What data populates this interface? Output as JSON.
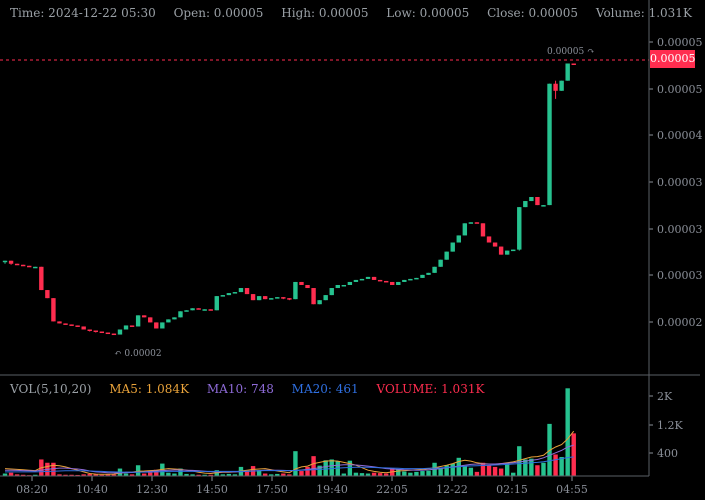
{
  "legend": {
    "time_label": "Time: 2024-12-22 05:30",
    "open_label": "Open: 0.00005",
    "high_label": "High: 0.00005",
    "low_label": "Low: 0.00005",
    "close_label": "Close: 0.00005",
    "volume_label": "Volume: 1.031K"
  },
  "volume_legend": {
    "title": "VOL(5,10,20)",
    "ma5": "MA5: 1.084K",
    "ma10": "MA10: 748",
    "ma20": "MA20: 461",
    "volume": "VOLUME: 1.031K"
  },
  "current_price": "0.00005",
  "max_marker": "0.00005",
  "min_marker": "0.00002",
  "colors": {
    "up": "#26c28f",
    "down": "#ff2d4f",
    "ma5": "#e8a23a",
    "ma10": "#8e6bd8",
    "ma20": "#2f6fe0",
    "axis": "#8a8f98"
  },
  "chart_data": {
    "type": "candlestick",
    "x_ticks": [
      "08:20",
      "10:40",
      "12:30",
      "14:50",
      "17:50",
      "19:40",
      "22:05",
      "12-22",
      "02:15",
      "04:55"
    ],
    "price_ticks": [
      "0.00005",
      "0.00005",
      "0.00004",
      "0.00003",
      "0.00003",
      "0.00003",
      "0.00002"
    ],
    "volume_ticks": [
      "2K",
      "1.2K",
      "400"
    ],
    "price_range": [
      1.68e-05,
      5.18e-05
    ],
    "volume_range": [
      0,
      2200
    ],
    "candles": [
      [
        2.8e-05,
        2.8e-05,
        2.77e-05,
        2.8e-05,
        60
      ],
      [
        2.8e-05,
        2.8e-05,
        2.76e-05,
        2.77e-05,
        80
      ],
      [
        2.77e-05,
        2.77e-05,
        2.76e-05,
        2.76e-05,
        40
      ],
      [
        2.76e-05,
        2.76e-05,
        2.75e-05,
        2.75e-05,
        30
      ],
      [
        2.75e-05,
        2.75e-05,
        2.74e-05,
        2.74e-05,
        20
      ],
      [
        2.74e-05,
        2.74e-05,
        2.73e-05,
        2.74e-05,
        30
      ],
      [
        2.74e-05,
        2.74e-05,
        2.51e-05,
        2.51e-05,
        400
      ],
      [
        2.51e-05,
        2.51e-05,
        2.43e-05,
        2.43e-05,
        320
      ],
      [
        2.43e-05,
        2.43e-05,
        2.2e-05,
        2.2e-05,
        320
      ],
      [
        2.2e-05,
        2.2e-05,
        2.18e-05,
        2.18e-05,
        40
      ],
      [
        2.18e-05,
        2.18e-05,
        2.17e-05,
        2.17e-05,
        30
      ],
      [
        2.17e-05,
        2.17e-05,
        2.16e-05,
        2.16e-05,
        30
      ],
      [
        2.16e-05,
        2.16e-05,
        2.15e-05,
        2.15e-05,
        25
      ],
      [
        2.15e-05,
        2.15e-05,
        2.12e-05,
        2.12e-05,
        40
      ],
      [
        2.12e-05,
        2.12e-05,
        2.1e-05,
        2.11e-05,
        50
      ],
      [
        2.11e-05,
        2.11e-05,
        2.09e-05,
        2.1e-05,
        40
      ],
      [
        2.1e-05,
        2.1e-05,
        2.09e-05,
        2.09e-05,
        30
      ],
      [
        2.09e-05,
        2.09e-05,
        2.08e-05,
        2.08e-05,
        35
      ],
      [
        2.08e-05,
        2.08e-05,
        2.07e-05,
        2.07e-05,
        35
      ],
      [
        2.07e-05,
        2.12e-05,
        2.07e-05,
        2.12e-05,
        180
      ],
      [
        2.12e-05,
        2.16e-05,
        2.12e-05,
        2.16e-05,
        60
      ],
      [
        2.16e-05,
        2.16e-05,
        2.15e-05,
        2.15e-05,
        40
      ],
      [
        2.15e-05,
        2.26e-05,
        2.15e-05,
        2.26e-05,
        260
      ],
      [
        2.26e-05,
        2.26e-05,
        2.24e-05,
        2.24e-05,
        60
      ],
      [
        2.24e-05,
        2.24e-05,
        2.19e-05,
        2.19e-05,
        120
      ],
      [
        2.19e-05,
        2.19e-05,
        2.13e-05,
        2.13e-05,
        150
      ],
      [
        2.13e-05,
        2.19e-05,
        2.13e-05,
        2.19e-05,
        300
      ],
      [
        2.19e-05,
        2.22e-05,
        2.19e-05,
        2.22e-05,
        80
      ],
      [
        2.22e-05,
        2.24e-05,
        2.22e-05,
        2.24e-05,
        60
      ],
      [
        2.24e-05,
        2.3e-05,
        2.24e-05,
        2.3e-05,
        180
      ],
      [
        2.3e-05,
        2.31e-05,
        2.3e-05,
        2.31e-05,
        50
      ],
      [
        2.31e-05,
        2.33e-05,
        2.31e-05,
        2.33e-05,
        40
      ],
      [
        2.33e-05,
        2.33e-05,
        2.32e-05,
        2.32e-05,
        30
      ],
      [
        2.32e-05,
        2.32e-05,
        2.31e-05,
        2.32e-05,
        30
      ],
      [
        2.32e-05,
        2.32e-05,
        2.31e-05,
        2.31e-05,
        30
      ],
      [
        2.31e-05,
        2.45e-05,
        2.31e-05,
        2.45e-05,
        140
      ],
      [
        2.45e-05,
        2.46e-05,
        2.45e-05,
        2.46e-05,
        40
      ],
      [
        2.46e-05,
        2.48e-05,
        2.46e-05,
        2.48e-05,
        50
      ],
      [
        2.48e-05,
        2.49e-05,
        2.48e-05,
        2.49e-05,
        40
      ],
      [
        2.49e-05,
        2.53e-05,
        2.49e-05,
        2.53e-05,
        220
      ],
      [
        2.53e-05,
        2.53e-05,
        2.47e-05,
        2.47e-05,
        120
      ],
      [
        2.47e-05,
        2.47e-05,
        2.41e-05,
        2.41e-05,
        240
      ],
      [
        2.41e-05,
        2.45e-05,
        2.41e-05,
        2.45e-05,
        140
      ],
      [
        2.45e-05,
        2.45e-05,
        2.42e-05,
        2.42e-05,
        60
      ],
      [
        2.42e-05,
        2.43e-05,
        2.42e-05,
        2.43e-05,
        40
      ],
      [
        2.43e-05,
        2.44e-05,
        2.43e-05,
        2.44e-05,
        50
      ],
      [
        2.44e-05,
        2.44e-05,
        2.42e-05,
        2.43e-05,
        60
      ],
      [
        2.43e-05,
        2.43e-05,
        2.41e-05,
        2.42e-05,
        40
      ],
      [
        2.42e-05,
        2.59e-05,
        2.42e-05,
        2.59e-05,
        600
      ],
      [
        2.59e-05,
        2.59e-05,
        2.56e-05,
        2.56e-05,
        120
      ],
      [
        2.56e-05,
        2.56e-05,
        2.53e-05,
        2.53e-05,
        220
      ],
      [
        2.53e-05,
        2.53e-05,
        2.37e-05,
        2.37e-05,
        480
      ],
      [
        2.37e-05,
        2.41e-05,
        2.37e-05,
        2.41e-05,
        250
      ],
      [
        2.41e-05,
        2.46e-05,
        2.41e-05,
        2.46e-05,
        380
      ],
      [
        2.46e-05,
        2.53e-05,
        2.46e-05,
        2.53e-05,
        400
      ],
      [
        2.53e-05,
        2.56e-05,
        2.53e-05,
        2.56e-05,
        360
      ],
      [
        2.56e-05,
        2.56e-05,
        2.55e-05,
        2.56e-05,
        60
      ],
      [
        2.56e-05,
        2.59e-05,
        2.56e-05,
        2.59e-05,
        370
      ],
      [
        2.59e-05,
        2.61e-05,
        2.59e-05,
        2.61e-05,
        80
      ],
      [
        2.61e-05,
        2.62e-05,
        2.61e-05,
        2.62e-05,
        70
      ],
      [
        2.62e-05,
        2.64e-05,
        2.62e-05,
        2.64e-05,
        60
      ],
      [
        2.64e-05,
        2.64e-05,
        2.61e-05,
        2.61e-05,
        80
      ],
      [
        2.61e-05,
        2.61e-05,
        2.6e-05,
        2.6e-05,
        70
      ],
      [
        2.6e-05,
        2.6e-05,
        2.59e-05,
        2.59e-05,
        60
      ],
      [
        2.59e-05,
        2.59e-05,
        2.56e-05,
        2.56e-05,
        180
      ],
      [
        2.56e-05,
        2.59e-05,
        2.56e-05,
        2.59e-05,
        160
      ],
      [
        2.59e-05,
        2.61e-05,
        2.59e-05,
        2.61e-05,
        110
      ],
      [
        2.61e-05,
        2.62e-05,
        2.61e-05,
        2.62e-05,
        80
      ],
      [
        2.62e-05,
        2.63e-05,
        2.62e-05,
        2.63e-05,
        100
      ],
      [
        2.63e-05,
        2.66e-05,
        2.63e-05,
        2.66e-05,
        120
      ],
      [
        2.66e-05,
        2.68e-05,
        2.66e-05,
        2.68e-05,
        130
      ],
      [
        2.68e-05,
        2.74e-05,
        2.68e-05,
        2.74e-05,
        320
      ],
      [
        2.74e-05,
        2.81e-05,
        2.74e-05,
        2.81e-05,
        200
      ],
      [
        2.81e-05,
        2.89e-05,
        2.81e-05,
        2.89e-05,
        260
      ],
      [
        2.89e-05,
        2.98e-05,
        2.89e-05,
        2.98e-05,
        300
      ],
      [
        2.98e-05,
        3.05e-05,
        2.98e-05,
        3.05e-05,
        440
      ],
      [
        3.05e-05,
        3.17e-05,
        3.05e-05,
        3.17e-05,
        240
      ],
      [
        3.17e-05,
        3.18e-05,
        3.17e-05,
        3.18e-05,
        200
      ],
      [
        3.18e-05,
        3.18e-05,
        3.17e-05,
        3.17e-05,
        100
      ],
      [
        3.17e-05,
        3.17e-05,
        3.04e-05,
        3.04e-05,
        320
      ],
      [
        3.04e-05,
        3.04e-05,
        2.98e-05,
        2.98e-05,
        260
      ],
      [
        2.98e-05,
        2.98e-05,
        2.94e-05,
        2.94e-05,
        220
      ],
      [
        2.94e-05,
        2.94e-05,
        2.86e-05,
        2.86e-05,
        180
      ],
      [
        2.86e-05,
        2.9e-05,
        2.86e-05,
        2.9e-05,
        300
      ],
      [
        2.9e-05,
        2.91e-05,
        2.9e-05,
        2.91e-05,
        80
      ],
      [
        2.91e-05,
        3.33e-05,
        2.9e-05,
        3.33e-05,
        720
      ],
      [
        3.33e-05,
        3.39e-05,
        3.33e-05,
        3.39e-05,
        400
      ],
      [
        3.39e-05,
        3.43e-05,
        3.39e-05,
        3.43e-05,
        420
      ],
      [
        3.43e-05,
        3.43e-05,
        3.35e-05,
        3.35e-05,
        260
      ],
      [
        3.35e-05,
        3.35e-05,
        3.34e-05,
        3.35e-05,
        320
      ],
      [
        3.35e-05,
        4.55e-05,
        3.35e-05,
        4.55e-05,
        1260
      ],
      [
        4.55e-05,
        4.58e-05,
        4.4e-05,
        4.48e-05,
        520
      ],
      [
        4.48e-05,
        4.58e-05,
        4.48e-05,
        4.58e-05,
        460
      ],
      [
        4.58e-05,
        4.75e-05,
        4.58e-05,
        4.75e-05,
        2120
      ],
      [
        4.75e-05,
        4.75e-05,
        4.74e-05,
        4.74e-05,
        1031
      ]
    ],
    "ma5": [
      180,
      170,
      160,
      150,
      140,
      130,
      200,
      230,
      260,
      250,
      220,
      180,
      140,
      100,
      60,
      45,
      40,
      40,
      45,
      70,
      90,
      95,
      115,
      120,
      130,
      140,
      160,
      180,
      170,
      160,
      140,
      120,
      90,
      70,
      60,
      80,
      90,
      90,
      100,
      120,
      140,
      160,
      170,
      180,
      150,
      120,
      100,
      80,
      170,
      220,
      240,
      300,
      330,
      360,
      370,
      360,
      330,
      300,
      260,
      200,
      140,
      110,
      90,
      80,
      100,
      120,
      130,
      140,
      150,
      160,
      180,
      200,
      230,
      260,
      300,
      350,
      380,
      360,
      320,
      300,
      290,
      280,
      300,
      320,
      340,
      380,
      420,
      460,
      470,
      500,
      620,
      700,
      760,
      900,
      1084
    ],
    "ma10": [
      140,
      140,
      135,
      130,
      125,
      120,
      140,
      160,
      180,
      190,
      190,
      180,
      170,
      150,
      120,
      100,
      90,
      80,
      75,
      75,
      80,
      85,
      95,
      100,
      110,
      120,
      130,
      140,
      145,
      145,
      140,
      135,
      125,
      115,
      105,
      100,
      100,
      100,
      100,
      105,
      110,
      120,
      130,
      140,
      140,
      140,
      135,
      130,
      135,
      145,
      160,
      180,
      200,
      230,
      250,
      260,
      270,
      270,
      265,
      255,
      240,
      220,
      200,
      180,
      170,
      160,
      150,
      145,
      140,
      140,
      150,
      165,
      180,
      200,
      220,
      240,
      260,
      280,
      290,
      290,
      290,
      290,
      300,
      310,
      320,
      340,
      360,
      380,
      400,
      440,
      500,
      560,
      620,
      700,
      748
    ],
    "ma20": [
      100,
      100,
      100,
      100,
      100,
      100,
      105,
      110,
      115,
      120,
      125,
      125,
      125,
      125,
      120,
      115,
      110,
      105,
      100,
      95,
      95,
      95,
      95,
      95,
      95,
      100,
      105,
      110,
      110,
      110,
      110,
      110,
      110,
      110,
      110,
      110,
      110,
      110,
      110,
      110,
      115,
      120,
      125,
      130,
      130,
      130,
      130,
      130,
      135,
      140,
      145,
      150,
      160,
      170,
      180,
      190,
      200,
      205,
      210,
      210,
      210,
      205,
      200,
      195,
      190,
      185,
      180,
      180,
      180,
      180,
      185,
      190,
      195,
      205,
      215,
      225,
      235,
      245,
      250,
      255,
      260,
      265,
      270,
      280,
      290,
      300,
      310,
      320,
      330,
      345,
      370,
      395,
      420,
      445,
      461
    ]
  }
}
